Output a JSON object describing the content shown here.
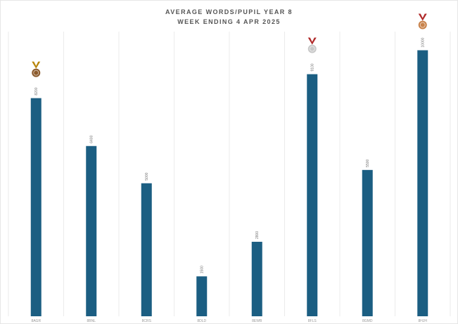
{
  "chart_data": {
    "type": "bar",
    "title_lines": [
      "AVERAGE WORDS/PUPIL YEAR 8",
      "WEEK ENDING 4 APR 2025"
    ],
    "categories": [
      "8AGR",
      "8BNL",
      "8CRS",
      "8DLD",
      "8EWB",
      "8FLS",
      "8GMD",
      "8HJH"
    ],
    "values": [
      8200,
      6400,
      5000,
      1500,
      2800,
      9100,
      5500,
      10000
    ],
    "ylim": [
      0,
      10700
    ],
    "grid": true,
    "colors": {
      "bar": "#1b5e82"
    },
    "medals": [
      {
        "category_index": 7,
        "icon": "medal-gold-icon",
        "ribbon": "#b02a2a",
        "disc": "#c8824a"
      },
      {
        "category_index": 5,
        "icon": "medal-silver-icon",
        "ribbon": "#b02a2a",
        "disc": "#c8c8c8"
      },
      {
        "category_index": 0,
        "icon": "medal-bronze-icon",
        "ribbon": "#b8860b",
        "disc": "#8b5a2b"
      }
    ]
  }
}
